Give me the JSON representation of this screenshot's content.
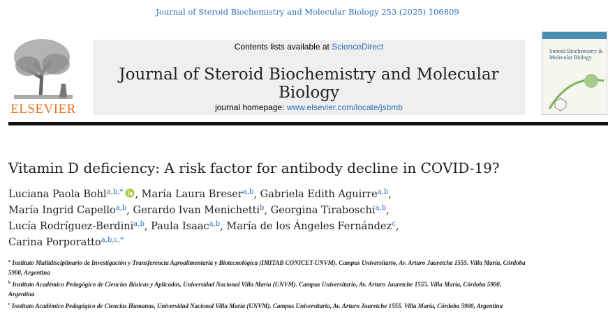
{
  "header": {
    "citation": "Journal of Steroid Biochemistry and Molecular Biology 253 (2025) 106809",
    "publisher": "ELSEVIER",
    "contents_text": "Contents lists available at",
    "contents_link": "ScienceDirect",
    "journal": "Journal of Steroid Biochemistry and Molecular Biology",
    "homepage_text": "journal homepage:",
    "homepage_link": "www.elsevier.com/locate/jsbmb",
    "cover_title": "Steroid Biochemistry & Molecular Biology"
  },
  "article": {
    "title": "Vitamin D deficiency: A risk factor for antibody decline in COVID-19?",
    "author_lines": [
      [
        {
          "name": "Luciana Paola Bohl",
          "affil": "a,b,*",
          "orcid": true,
          "punct": ","
        },
        {
          "name": "María Laura Breser",
          "affil": "a,b",
          "punct": ","
        },
        {
          "name": "Gabriela Edith Aguirre",
          "affil": "a,b",
          "punct": ","
        }
      ],
      [
        {
          "name": "María Ingrid Capello",
          "affil": "a,b",
          "punct": ","
        },
        {
          "name": "Gerardo Ivan Menichetti",
          "affil": "b",
          "punct": ","
        },
        {
          "name": "Georgina Tiraboschi",
          "affil": "a,b",
          "punct": ","
        }
      ],
      [
        {
          "name": "Lucía Rodríguez-Berdini",
          "affil": "a,b",
          "punct": ","
        },
        {
          "name": "Paula Isaac",
          "affil": "a,b",
          "punct": ","
        },
        {
          "name": "María de los Ángeles Fernández",
          "affil": "c",
          "punct": ","
        }
      ],
      [
        {
          "name": "Carina Porporatto",
          "affil": "a,b,c,*"
        }
      ]
    ],
    "affiliations": [
      {
        "label": "a",
        "text": "Instituto Multidisciplinario de Investigación y Transferencia Agroalimentaria y Biotecnológica (IMITAB CONICET-UNVM). Campus Universitario, Av. Arturo Jauretche 1555. Villa María, Córdoba 5900, Argentina"
      },
      {
        "label": "b",
        "text": "Instituto Académico Pedagógico de Ciencias Básicas y Aplicadas, Universidad Nacional Villa María (UNVM). Campus Universitario, Av. Arturo Jauretche 1555. Villa María, Córdoba 5900, Argentina"
      },
      {
        "label": "c",
        "text": "Instituto Académico Pedagógico de Ciencias Humanas, Universidad Nacional Villa María (UNVM). Campus Universitario, Av. Arturo Jauretche 1555. Villa María, Córdoba 5900, Argentina"
      }
    ]
  }
}
